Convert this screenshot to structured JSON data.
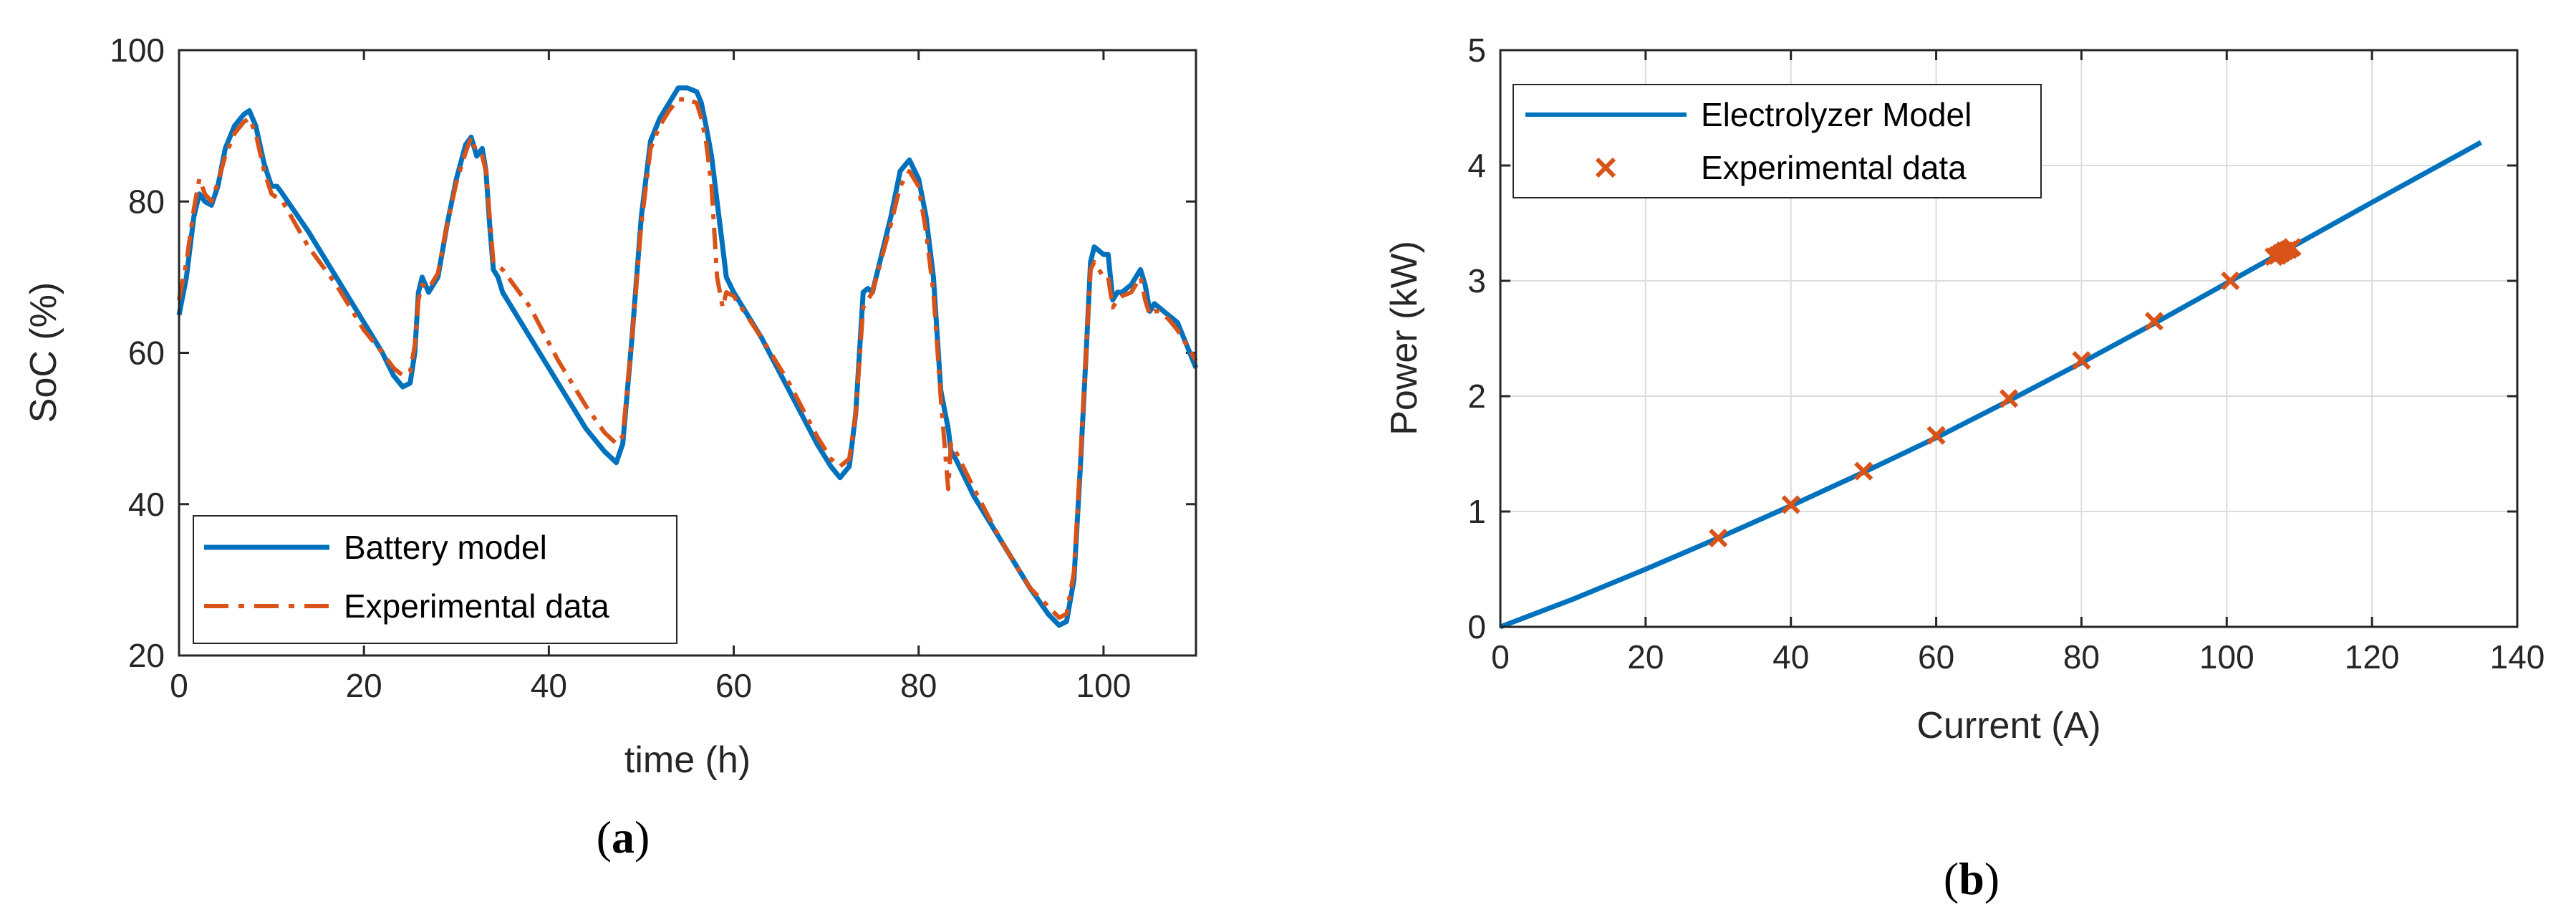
{
  "colors": {
    "model": "#0072BD",
    "experimental": "#D95319",
    "axis": "#262626",
    "grid": "#DCDCDC"
  },
  "chart_data": [
    {
      "type": "line",
      "panel_label": {
        "open": "(",
        "letter": "a",
        "close": ")"
      },
      "xlabel": "time (h)",
      "ylabel": "SoC (%)",
      "xlim": [
        0,
        110
      ],
      "ylim": [
        20,
        100
      ],
      "xticks": [
        "0",
        "20",
        "40",
        "60",
        "80",
        "100"
      ],
      "yticks": [
        "20",
        "40",
        "60",
        "80",
        "100"
      ],
      "grid": false,
      "legend_position": "bottom-left",
      "series": [
        {
          "name": "Battery model",
          "style": "solid",
          "x": [
            0,
            0.8,
            1.6,
            2.2,
            2.8,
            3.5,
            4.2,
            5,
            6,
            7,
            7.6,
            8.3,
            9.2,
            10,
            10.6,
            11.2,
            14,
            17,
            20,
            22,
            23.2,
            24.2,
            25,
            25.5,
            25.9,
            26.3,
            27,
            28,
            29,
            30,
            31,
            31.6,
            32.2,
            32.8,
            33.2,
            33.6,
            34,
            34.5,
            35,
            38,
            41,
            44,
            46,
            47.3,
            48,
            49,
            50,
            51,
            52,
            53,
            54,
            55,
            56,
            56.5,
            57,
            57.6,
            58.2,
            58.8,
            59.2,
            60,
            63,
            66,
            69,
            70.5,
            71.5,
            72.5,
            73.2,
            73.6,
            74,
            74.5,
            75,
            76,
            77,
            78,
            79,
            80,
            80.8,
            81.6,
            82.4,
            83.2,
            83.5,
            84,
            86,
            89,
            92,
            94,
            95.2,
            96,
            96.8,
            97.5,
            98.2,
            98.6,
            99,
            99.5,
            100,
            100.5,
            101,
            101.5,
            102,
            103,
            104,
            104.5,
            105,
            105.5,
            106,
            107,
            108,
            109,
            110
          ],
          "y": [
            65,
            70,
            78,
            81,
            80,
            79.5,
            82,
            87,
            90,
            91.5,
            92,
            90,
            85,
            82,
            82,
            81,
            76,
            70,
            64,
            60,
            57,
            55.5,
            56,
            60,
            68,
            70,
            68,
            70,
            77,
            83,
            87.5,
            88.5,
            86,
            87,
            84,
            77,
            71,
            70,
            68,
            62,
            56,
            50,
            47,
            45.5,
            48,
            62,
            78,
            88,
            91,
            93,
            95,
            95,
            94.5,
            93,
            90,
            86,
            80,
            74,
            70,
            68,
            62,
            55,
            48,
            45,
            43.5,
            45,
            52,
            60,
            68,
            68.5,
            68,
            73,
            78,
            84,
            85.5,
            83,
            78,
            70,
            55,
            50,
            47,
            46,
            41,
            35,
            29,
            25.5,
            24,
            24.5,
            30,
            45,
            62,
            72,
            74,
            73.5,
            73,
            73,
            67,
            68,
            68,
            69,
            71,
            69,
            65.5,
            66.5,
            66,
            65,
            64,
            61,
            58
          ]
        },
        {
          "name": "Experimental data",
          "style": "dash-dot",
          "x": [
            0,
            0.8,
            1.6,
            2.2,
            2.8,
            3.5,
            4.2,
            5,
            6,
            7,
            7.6,
            8.3,
            9.2,
            10,
            10.6,
            11.2,
            14,
            17,
            20,
            22,
            23.2,
            24.2,
            25,
            25.5,
            25.9,
            26.3,
            27,
            28,
            29,
            30,
            31,
            31.6,
            32.2,
            32.8,
            33.2,
            33.6,
            34,
            34.5,
            35,
            38,
            41,
            44,
            46,
            47.3,
            48,
            49,
            50,
            51,
            52,
            53,
            54,
            55,
            56,
            56.5,
            57,
            57.6,
            58.2,
            58.8,
            59.2,
            60,
            63,
            66,
            69,
            70.5,
            71.5,
            72.5,
            73.2,
            73.6,
            74,
            74.5,
            75,
            76,
            77,
            78,
            79,
            80,
            80.8,
            81.6,
            82.4,
            83.2,
            83.5,
            84,
            86,
            89,
            92,
            94,
            95.2,
            96,
            96.8,
            97.5,
            98.2,
            98.6,
            99,
            99.5,
            100,
            100.5,
            101,
            101.5,
            102,
            103,
            104,
            104.5,
            105,
            105.5,
            106,
            107,
            108,
            109,
            110
          ],
          "y": [
            67,
            72,
            79,
            83,
            81,
            80,
            82.5,
            86,
            89,
            90.5,
            91,
            89,
            84,
            81,
            80.5,
            80,
            74,
            69,
            63,
            60,
            58,
            57,
            57.5,
            61,
            67,
            69,
            68.5,
            70.5,
            77,
            82.5,
            86.5,
            88.5,
            86.5,
            86,
            84,
            78,
            72,
            71.5,
            71,
            66,
            59,
            53,
            49.5,
            48,
            49,
            62,
            77,
            87,
            90,
            92,
            93.5,
            93.5,
            93,
            91,
            88,
            82,
            70,
            66,
            68,
            67.5,
            62,
            56,
            49,
            46,
            45,
            46,
            52,
            59,
            66,
            67,
            68,
            72.5,
            77,
            82,
            84,
            82,
            76,
            68,
            54,
            42,
            48,
            47,
            42,
            35,
            29,
            26.5,
            25,
            25.5,
            31,
            46,
            62,
            71,
            72,
            71,
            70,
            70,
            66,
            67,
            67.5,
            68,
            70,
            67,
            65,
            65.5,
            65.5,
            64.5,
            63,
            61,
            59
          ]
        }
      ]
    },
    {
      "type": "line",
      "panel_label": {
        "open": "(",
        "letter": "b",
        "close": ")"
      },
      "xlabel": "Current (A)",
      "ylabel": "Power (kW)",
      "xlim": [
        0,
        140
      ],
      "ylim": [
        0,
        5
      ],
      "xticks": [
        "0",
        "20",
        "40",
        "60",
        "80",
        "100",
        "120",
        "140"
      ],
      "yticks": [
        "0",
        "1",
        "2",
        "3",
        "4",
        "5"
      ],
      "grid": true,
      "legend_position": "top-left",
      "series": [
        {
          "name": "Electrolyzer Model",
          "style": "solid",
          "x": [
            0,
            10,
            20,
            30,
            40,
            50,
            60,
            70,
            80,
            90,
            100,
            110,
            120,
            135
          ],
          "y": [
            0,
            0.24,
            0.5,
            0.77,
            1.05,
            1.34,
            1.64,
            1.96,
            2.29,
            2.63,
            2.98,
            3.33,
            3.68,
            4.2
          ]
        },
        {
          "name": "Experimental data",
          "style": "markers-x",
          "x": [
            30,
            40,
            50,
            60,
            70,
            80,
            90,
            100.5,
            106.5,
            107,
            107.5,
            108,
            108.5,
            109
          ],
          "y": [
            0.77,
            1.06,
            1.35,
            1.66,
            1.98,
            2.31,
            2.65,
            3.0,
            3.21,
            3.22,
            3.24,
            3.26,
            3.27,
            3.29
          ]
        }
      ]
    }
  ]
}
